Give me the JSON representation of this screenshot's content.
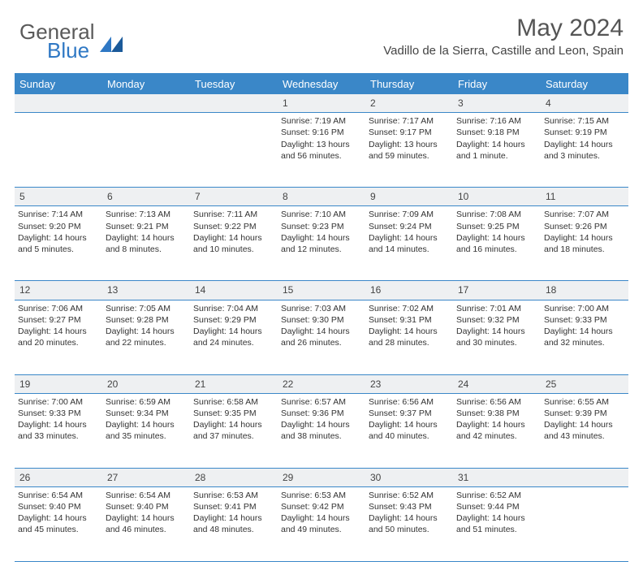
{
  "logo": {
    "word1": "General",
    "word2": "Blue"
  },
  "title": "May 2024",
  "location": "Vadillo de la Sierra, Castille and Leon, Spain",
  "colors": {
    "header_bg": "#3a87c8",
    "header_text": "#ffffff",
    "daynum_bg": "#eef0f2",
    "body_text": "#333333",
    "logo_gray": "#5a5a5a",
    "logo_blue": "#2f78c4"
  },
  "day_headers": [
    "Sunday",
    "Monday",
    "Tuesday",
    "Wednesday",
    "Thursday",
    "Friday",
    "Saturday"
  ],
  "weeks": [
    {
      "nums": [
        "",
        "",
        "",
        "1",
        "2",
        "3",
        "4"
      ],
      "cells": [
        null,
        null,
        null,
        {
          "sunrise": "7:19 AM",
          "sunset": "9:16 PM",
          "daylight": "13 hours and 56 minutes."
        },
        {
          "sunrise": "7:17 AM",
          "sunset": "9:17 PM",
          "daylight": "13 hours and 59 minutes."
        },
        {
          "sunrise": "7:16 AM",
          "sunset": "9:18 PM",
          "daylight": "14 hours and 1 minute."
        },
        {
          "sunrise": "7:15 AM",
          "sunset": "9:19 PM",
          "daylight": "14 hours and 3 minutes."
        }
      ]
    },
    {
      "nums": [
        "5",
        "6",
        "7",
        "8",
        "9",
        "10",
        "11"
      ],
      "cells": [
        {
          "sunrise": "7:14 AM",
          "sunset": "9:20 PM",
          "daylight": "14 hours and 5 minutes."
        },
        {
          "sunrise": "7:13 AM",
          "sunset": "9:21 PM",
          "daylight": "14 hours and 8 minutes."
        },
        {
          "sunrise": "7:11 AM",
          "sunset": "9:22 PM",
          "daylight": "14 hours and 10 minutes."
        },
        {
          "sunrise": "7:10 AM",
          "sunset": "9:23 PM",
          "daylight": "14 hours and 12 minutes."
        },
        {
          "sunrise": "7:09 AM",
          "sunset": "9:24 PM",
          "daylight": "14 hours and 14 minutes."
        },
        {
          "sunrise": "7:08 AM",
          "sunset": "9:25 PM",
          "daylight": "14 hours and 16 minutes."
        },
        {
          "sunrise": "7:07 AM",
          "sunset": "9:26 PM",
          "daylight": "14 hours and 18 minutes."
        }
      ]
    },
    {
      "nums": [
        "12",
        "13",
        "14",
        "15",
        "16",
        "17",
        "18"
      ],
      "cells": [
        {
          "sunrise": "7:06 AM",
          "sunset": "9:27 PM",
          "daylight": "14 hours and 20 minutes."
        },
        {
          "sunrise": "7:05 AM",
          "sunset": "9:28 PM",
          "daylight": "14 hours and 22 minutes."
        },
        {
          "sunrise": "7:04 AM",
          "sunset": "9:29 PM",
          "daylight": "14 hours and 24 minutes."
        },
        {
          "sunrise": "7:03 AM",
          "sunset": "9:30 PM",
          "daylight": "14 hours and 26 minutes."
        },
        {
          "sunrise": "7:02 AM",
          "sunset": "9:31 PM",
          "daylight": "14 hours and 28 minutes."
        },
        {
          "sunrise": "7:01 AM",
          "sunset": "9:32 PM",
          "daylight": "14 hours and 30 minutes."
        },
        {
          "sunrise": "7:00 AM",
          "sunset": "9:33 PM",
          "daylight": "14 hours and 32 minutes."
        }
      ]
    },
    {
      "nums": [
        "19",
        "20",
        "21",
        "22",
        "23",
        "24",
        "25"
      ],
      "cells": [
        {
          "sunrise": "7:00 AM",
          "sunset": "9:33 PM",
          "daylight": "14 hours and 33 minutes."
        },
        {
          "sunrise": "6:59 AM",
          "sunset": "9:34 PM",
          "daylight": "14 hours and 35 minutes."
        },
        {
          "sunrise": "6:58 AM",
          "sunset": "9:35 PM",
          "daylight": "14 hours and 37 minutes."
        },
        {
          "sunrise": "6:57 AM",
          "sunset": "9:36 PM",
          "daylight": "14 hours and 38 minutes."
        },
        {
          "sunrise": "6:56 AM",
          "sunset": "9:37 PM",
          "daylight": "14 hours and 40 minutes."
        },
        {
          "sunrise": "6:56 AM",
          "sunset": "9:38 PM",
          "daylight": "14 hours and 42 minutes."
        },
        {
          "sunrise": "6:55 AM",
          "sunset": "9:39 PM",
          "daylight": "14 hours and 43 minutes."
        }
      ]
    },
    {
      "nums": [
        "26",
        "27",
        "28",
        "29",
        "30",
        "31",
        ""
      ],
      "cells": [
        {
          "sunrise": "6:54 AM",
          "sunset": "9:40 PM",
          "daylight": "14 hours and 45 minutes."
        },
        {
          "sunrise": "6:54 AM",
          "sunset": "9:40 PM",
          "daylight": "14 hours and 46 minutes."
        },
        {
          "sunrise": "6:53 AM",
          "sunset": "9:41 PM",
          "daylight": "14 hours and 48 minutes."
        },
        {
          "sunrise": "6:53 AM",
          "sunset": "9:42 PM",
          "daylight": "14 hours and 49 minutes."
        },
        {
          "sunrise": "6:52 AM",
          "sunset": "9:43 PM",
          "daylight": "14 hours and 50 minutes."
        },
        {
          "sunrise": "6:52 AM",
          "sunset": "9:44 PM",
          "daylight": "14 hours and 51 minutes."
        },
        null
      ]
    }
  ],
  "labels": {
    "sunrise": "Sunrise:",
    "sunset": "Sunset:",
    "daylight": "Daylight:"
  }
}
